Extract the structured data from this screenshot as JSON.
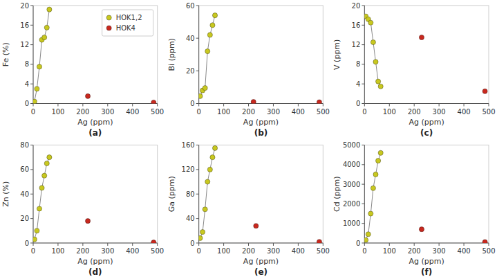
{
  "chart_data": [
    {
      "type": "scatter",
      "title": "(a)",
      "xlabel": "Ag (ppm)",
      "ylabel": "Fe (%)",
      "xlim": [
        0,
        500
      ],
      "xticks": [
        0,
        100,
        200,
        300,
        400,
        500
      ],
      "ylim": [
        0,
        20
      ],
      "yticks": [
        0,
        4,
        8,
        12,
        16,
        20
      ],
      "grid": false,
      "legend": "upper right",
      "series": [
        {
          "name": "HOK1,2",
          "color": "#c8c820",
          "marker": "circle",
          "line_style": "solid",
          "x": [
            5,
            15,
            25,
            35,
            45,
            55,
            65
          ],
          "values": [
            0.4,
            3.0,
            7.5,
            13.0,
            13.5,
            15.5,
            19.2
          ]
        },
        {
          "name": "HOK4",
          "color": "#c8281e",
          "marker": "circle",
          "line_style": "none",
          "x": [
            220,
            485
          ],
          "values": [
            1.5,
            0.2
          ]
        }
      ]
    },
    {
      "type": "scatter",
      "title": "(b)",
      "xlabel": "Ag (ppm)",
      "ylabel": "Bi (ppm)",
      "xlim": [
        0,
        500
      ],
      "xticks": [
        0,
        100,
        200,
        300,
        400,
        500
      ],
      "ylim": [
        0,
        60
      ],
      "yticks": [
        0,
        20,
        40,
        60
      ],
      "grid": false,
      "series": [
        {
          "color": "#c8c820",
          "marker": "circle",
          "line_style": "solid",
          "x": [
            5,
            15,
            25,
            35,
            45,
            55,
            65
          ],
          "values": [
            4.5,
            8.0,
            9.5,
            32.0,
            42.0,
            48.0,
            54.0
          ]
        },
        {
          "color": "#c8281e",
          "marker": "circle",
          "line_style": "none",
          "x": [
            220,
            485
          ],
          "values": [
            1.0,
            0.8
          ]
        }
      ]
    },
    {
      "type": "scatter",
      "title": "(c)",
      "xlabel": "Ag (ppm)",
      "ylabel": "V (ppm)",
      "xlim": [
        0,
        500
      ],
      "xticks": [
        0,
        100,
        200,
        300,
        400,
        500
      ],
      "ylim": [
        0,
        20
      ],
      "yticks": [
        0,
        4,
        8,
        12,
        16,
        20
      ],
      "grid": false,
      "series": [
        {
          "color": "#c8c820",
          "marker": "circle",
          "line_style": "solid",
          "x": [
            5,
            15,
            25,
            35,
            45,
            55,
            65
          ],
          "values": [
            17.8,
            17.2,
            16.5,
            12.5,
            8.5,
            4.5,
            3.5
          ]
        },
        {
          "color": "#c8281e",
          "marker": "circle",
          "line_style": "none",
          "x": [
            230,
            485
          ],
          "values": [
            13.5,
            2.5
          ]
        }
      ]
    },
    {
      "type": "scatter",
      "title": "(d)",
      "xlabel": "Ag (ppm)",
      "ylabel": "Zn (%)",
      "xlim": [
        0,
        500
      ],
      "xticks": [
        0,
        100,
        200,
        300,
        400,
        500
      ],
      "ylim": [
        0,
        80
      ],
      "yticks": [
        0,
        20,
        40,
        60,
        80
      ],
      "grid": false,
      "series": [
        {
          "color": "#c8c820",
          "marker": "circle",
          "line_style": "solid",
          "x": [
            5,
            15,
            25,
            35,
            45,
            55,
            65
          ],
          "values": [
            3.0,
            10.0,
            28.0,
            45.0,
            55.0,
            65.0,
            70.0
          ]
        },
        {
          "color": "#c8281e",
          "marker": "circle",
          "line_style": "none",
          "x": [
            220,
            485
          ],
          "values": [
            18.0,
            0.5
          ]
        }
      ]
    },
    {
      "type": "scatter",
      "title": "(e)",
      "xlabel": "Ag (ppm)",
      "ylabel": "Ga (ppm)",
      "xlim": [
        0,
        500
      ],
      "xticks": [
        0,
        100,
        200,
        300,
        400,
        500
      ],
      "ylim": [
        0,
        160
      ],
      "yticks": [
        0,
        40,
        80,
        120,
        160
      ],
      "grid": false,
      "series": [
        {
          "color": "#c8c820",
          "marker": "circle",
          "line_style": "solid",
          "x": [
            5,
            15,
            25,
            35,
            45,
            55,
            65
          ],
          "values": [
            8.0,
            18.0,
            55.0,
            100.0,
            120.0,
            140.0,
            155.0
          ]
        },
        {
          "color": "#c8281e",
          "marker": "circle",
          "line_style": "none",
          "x": [
            230,
            485
          ],
          "values": [
            28.0,
            2.0
          ]
        }
      ]
    },
    {
      "type": "scatter",
      "title": "(f)",
      "xlabel": "Ag (ppm)",
      "ylabel": "Cd (ppm)",
      "xlim": [
        0,
        500
      ],
      "xticks": [
        0,
        100,
        200,
        300,
        400,
        500
      ],
      "ylim": [
        0,
        5000
      ],
      "yticks": [
        0,
        1000,
        2000,
        3000,
        4000,
        5000
      ],
      "grid": false,
      "series": [
        {
          "color": "#c8c820",
          "marker": "circle",
          "line_style": "solid",
          "x": [
            5,
            15,
            25,
            35,
            45,
            55,
            65
          ],
          "values": [
            150,
            450,
            1500,
            2800,
            3500,
            4200,
            4600
          ]
        },
        {
          "color": "#c8281e",
          "marker": "circle",
          "line_style": "none",
          "x": [
            230,
            485
          ],
          "values": [
            700,
            50
          ]
        }
      ]
    }
  ]
}
